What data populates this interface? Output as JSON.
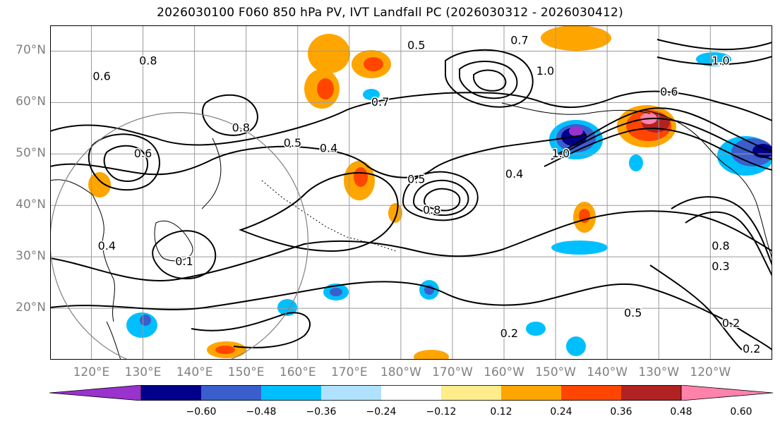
{
  "title": "2026030100 F060 850 hPa PV, IVT Landfall PC (2026030312 - 2026030412)",
  "map": {
    "projection": "plate-carree",
    "lon_range_east": [
      112,
      252
    ],
    "lat_range": [
      10,
      75
    ],
    "grid": true,
    "lat_ticks": [
      {
        "value": 70,
        "label": "70°N"
      },
      {
        "value": 60,
        "label": "60°N"
      },
      {
        "value": 50,
        "label": "50°N"
      },
      {
        "value": 40,
        "label": "40°N"
      },
      {
        "value": 30,
        "label": "30°N"
      },
      {
        "value": 20,
        "label": "20°N"
      }
    ],
    "lon_ticks": [
      {
        "value": 120,
        "label": "120°E"
      },
      {
        "value": 130,
        "label": "130°E"
      },
      {
        "value": 140,
        "label": "140°E"
      },
      {
        "value": 150,
        "label": "150°E"
      },
      {
        "value": 160,
        "label": "160°E"
      },
      {
        "value": 170,
        "label": "170°E"
      },
      {
        "value": 180,
        "label": "180°W"
      },
      {
        "value": 190,
        "label": "170°W"
      },
      {
        "value": 200,
        "label": "160°W"
      },
      {
        "value": 210,
        "label": "150°W"
      },
      {
        "value": 220,
        "label": "140°W"
      },
      {
        "value": 230,
        "label": "130°W"
      },
      {
        "value": 240,
        "label": "120°W"
      }
    ],
    "contour_labels": [
      {
        "text": "0.8",
        "lon": 131,
        "lat": 68
      },
      {
        "text": "0.6",
        "lon": 122,
        "lat": 65
      },
      {
        "text": "0.8",
        "lon": 149,
        "lat": 55
      },
      {
        "text": "0.6",
        "lon": 130,
        "lat": 50
      },
      {
        "text": "0.4",
        "lon": 123,
        "lat": 32
      },
      {
        "text": "0.1",
        "lon": 138,
        "lat": 29
      },
      {
        "text": "0.5",
        "lon": 159,
        "lat": 52
      },
      {
        "text": "0.4",
        "lon": 166,
        "lat": 51
      },
      {
        "text": "0.7",
        "lon": 176,
        "lat": 60
      },
      {
        "text": "0.5",
        "lon": 183,
        "lat": 71
      },
      {
        "text": "0.7",
        "lon": 203,
        "lat": 72
      },
      {
        "text": "1.0",
        "lon": 208,
        "lat": 66
      },
      {
        "text": "0.5",
        "lon": 183,
        "lat": 45
      },
      {
        "text": "0.8",
        "lon": 186,
        "lat": 39
      },
      {
        "text": "0.4",
        "lon": 202,
        "lat": 46
      },
      {
        "text": "1.0",
        "lon": 211,
        "lat": 50
      },
      {
        "text": "0.6",
        "lon": 232,
        "lat": 62
      },
      {
        "text": "1.0",
        "lon": 242,
        "lat": 68
      },
      {
        "text": "0.8",
        "lon": 242,
        "lat": 32
      },
      {
        "text": "0.3",
        "lon": 242,
        "lat": 28
      },
      {
        "text": "0.5",
        "lon": 225,
        "lat": 19
      },
      {
        "text": "0.2",
        "lon": 244,
        "lat": 17
      },
      {
        "text": "0.2",
        "lon": 248,
        "lat": 12
      },
      {
        "text": "0.2",
        "lon": 201,
        "lat": 15
      }
    ],
    "range_circle": {
      "center_lon": 137,
      "center_lat": 33,
      "radius_deg": 25
    }
  },
  "colorbar": {
    "colors": [
      "#9a32cd",
      "#00008b",
      "#3a5fcd",
      "#00bfff",
      "#b0e2ff",
      "#ffffff",
      "#ffec8b",
      "#ffa500",
      "#ff4500",
      "#b22222",
      "#ff82ab"
    ],
    "boundaries": [
      -0.6,
      -0.48,
      -0.36,
      -0.24,
      -0.12,
      0.12,
      0.24,
      0.36,
      0.48,
      0.6
    ],
    "tick_labels": [
      "−0.60",
      "−0.48",
      "−0.36",
      "−0.24",
      "−0.12",
      "0.12",
      "0.24",
      "0.36",
      "0.48",
      "0.60"
    ],
    "extend": "both"
  }
}
